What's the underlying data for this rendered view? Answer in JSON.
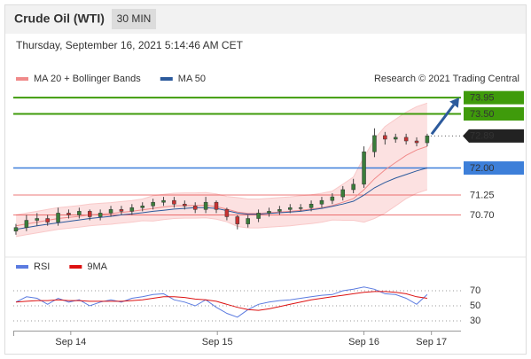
{
  "header": {
    "title": "Crude Oil (WTI)",
    "interval": "30 MIN",
    "timestamp": "Thursday, September 16, 2021 5:14:46 AM CET"
  },
  "chart_data": [
    {
      "type": "candlestick",
      "credit": "Research © 2021 Trading Central",
      "xlim": [
        -0.25,
        42.2
      ],
      "ylim": [
        69.9,
        74.2
      ],
      "up_color": "#3a7d3a",
      "down_color": "#c83232",
      "open": [
        70.25,
        70.35,
        70.55,
        70.6,
        70.5,
        70.75,
        70.7,
        70.8,
        70.65,
        70.75,
        70.85,
        70.8,
        70.9,
        70.95,
        71.05,
        71.1,
        71.0,
        70.95,
        70.85,
        71.05,
        70.85,
        70.65,
        70.45,
        70.6,
        70.75,
        70.8,
        70.85,
        70.9,
        70.9,
        71.0,
        71.1,
        71.2,
        71.4,
        71.55,
        72.45,
        72.9,
        72.8,
        72.85,
        72.75,
        72.7
      ],
      "high": [
        70.45,
        70.7,
        70.75,
        70.7,
        70.9,
        70.85,
        70.9,
        70.85,
        70.85,
        70.95,
        70.95,
        71.0,
        71.05,
        71.15,
        71.2,
        71.2,
        71.1,
        71.05,
        71.2,
        71.1,
        70.9,
        70.7,
        70.7,
        70.85,
        70.9,
        70.95,
        71.0,
        71.0,
        71.1,
        71.2,
        71.3,
        71.5,
        71.7,
        72.6,
        73.1,
        73.0,
        72.95,
        72.95,
        72.85,
        72.95
      ],
      "low": [
        70.15,
        70.25,
        70.4,
        70.4,
        70.4,
        70.6,
        70.6,
        70.55,
        70.55,
        70.65,
        70.7,
        70.7,
        70.8,
        70.85,
        70.95,
        70.9,
        70.85,
        70.75,
        70.75,
        70.75,
        70.55,
        70.3,
        70.35,
        70.5,
        70.65,
        70.7,
        70.75,
        70.8,
        70.8,
        70.9,
        71.0,
        71.1,
        71.3,
        71.45,
        72.3,
        72.65,
        72.7,
        72.65,
        72.6,
        72.6
      ],
      "close": [
        70.35,
        70.55,
        70.6,
        70.5,
        70.75,
        70.7,
        70.8,
        70.65,
        70.75,
        70.85,
        70.8,
        70.9,
        70.95,
        71.05,
        71.1,
        71.0,
        70.95,
        70.85,
        71.05,
        70.85,
        70.65,
        70.45,
        70.6,
        70.75,
        70.8,
        70.85,
        70.9,
        70.9,
        71.0,
        71.1,
        71.2,
        71.4,
        71.55,
        72.45,
        72.9,
        72.8,
        72.85,
        72.75,
        72.7,
        72.89
      ],
      "series": [
        {
          "name": "MA 20 + Bollinger Bands",
          "color": "#f08a8a",
          "band_color": "#f9c9c9",
          "values": [
            70.4,
            70.45,
            70.5,
            70.55,
            70.6,
            70.63,
            70.66,
            70.7,
            70.72,
            70.74,
            70.77,
            70.8,
            70.84,
            70.88,
            70.92,
            70.95,
            70.96,
            70.96,
            70.97,
            70.93,
            70.86,
            70.78,
            70.74,
            70.74,
            70.76,
            70.78,
            70.8,
            70.83,
            70.86,
            70.9,
            70.96,
            71.05,
            71.15,
            71.4,
            71.7,
            71.95,
            72.15,
            72.35,
            72.5,
            72.6
          ],
          "upper": [
            70.7,
            70.75,
            70.8,
            70.85,
            70.9,
            70.93,
            70.96,
            71.0,
            71.02,
            71.04,
            71.07,
            71.1,
            71.14,
            71.23,
            71.27,
            71.3,
            71.31,
            71.31,
            71.32,
            71.28,
            71.21,
            71.18,
            71.14,
            71.14,
            71.16,
            71.18,
            71.2,
            71.23,
            71.26,
            71.3,
            71.36,
            71.55,
            71.75,
            72.3,
            72.8,
            73.15,
            73.35,
            73.55,
            73.7,
            73.8
          ],
          "lower": [
            70.1,
            70.15,
            70.2,
            70.25,
            70.3,
            70.33,
            70.36,
            70.4,
            70.42,
            70.44,
            70.47,
            70.5,
            70.54,
            70.53,
            70.57,
            70.6,
            70.61,
            70.61,
            70.62,
            70.58,
            70.51,
            70.38,
            70.34,
            70.34,
            70.36,
            70.38,
            70.4,
            70.43,
            70.46,
            70.5,
            70.56,
            70.55,
            70.55,
            70.5,
            70.6,
            70.75,
            70.95,
            71.15,
            71.3,
            71.4
          ]
        },
        {
          "name": "MA 50",
          "color": "#2c5a9c",
          "values": [
            70.3,
            70.35,
            70.4,
            70.44,
            70.48,
            70.52,
            70.56,
            70.6,
            70.63,
            70.66,
            70.7,
            70.73,
            70.76,
            70.8,
            70.83,
            70.86,
            70.88,
            70.9,
            70.9,
            70.88,
            70.82,
            70.75,
            70.72,
            70.72,
            70.74,
            70.76,
            70.78,
            70.8,
            70.84,
            70.88,
            70.94,
            71.0,
            71.08,
            71.25,
            71.45,
            71.6,
            71.72,
            71.82,
            71.92,
            72.0
          ]
        }
      ],
      "levels": [
        {
          "value": 73.95,
          "label": "73.95",
          "color": "#3f9b0b",
          "kind": "box"
        },
        {
          "value": 73.5,
          "label": "73.50",
          "color": "#3f9b0b",
          "kind": "box"
        },
        {
          "value": 72.89,
          "label": "72.89",
          "color": "#222222",
          "kind": "current"
        },
        {
          "value": 72.0,
          "label": "72.00",
          "color": "#3d7fd9",
          "kind": "box"
        },
        {
          "value": 71.25,
          "label": "71.25",
          "color": "#e02020",
          "kind": "text"
        },
        {
          "value": 70.7,
          "label": "70.70",
          "color": "#e02020",
          "kind": "text"
        }
      ],
      "arrow_color": "#2c5a9c"
    },
    {
      "type": "line",
      "xlim": [
        -0.25,
        42.2
      ],
      "ylim": [
        20,
        90
      ],
      "yticks": [
        30,
        50,
        70
      ],
      "xticks": [
        {
          "value": 5.2,
          "label": "Sep 14"
        },
        {
          "value": 19.1,
          "label": "Sep 15"
        },
        {
          "value": 33,
          "label": "Sep 16"
        },
        {
          "value": 39.4,
          "label": "Sep 17"
        }
      ],
      "series": [
        {
          "name": "RSI",
          "color": "#5b7be0",
          "values": [
            55,
            62,
            60,
            52,
            60,
            55,
            58,
            50,
            55,
            58,
            55,
            60,
            62,
            65,
            66,
            58,
            55,
            50,
            58,
            48,
            40,
            35,
            45,
            52,
            55,
            57,
            58,
            60,
            62,
            64,
            65,
            70,
            72,
            75,
            72,
            66,
            65,
            60,
            52,
            65
          ]
        },
        {
          "name": "9MA",
          "color": "#dd1111",
          "values": [
            55,
            56,
            57,
            57,
            58,
            57,
            57,
            56,
            56,
            56,
            56,
            57,
            58,
            60,
            62,
            62,
            61,
            59,
            58,
            56,
            52,
            48,
            45,
            44,
            46,
            49,
            52,
            55,
            58,
            60,
            62,
            64,
            66,
            68,
            69,
            69,
            68,
            66,
            62,
            60
          ]
        }
      ]
    }
  ]
}
